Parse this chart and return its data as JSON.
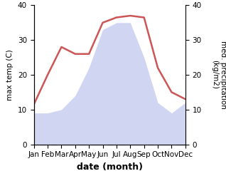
{
  "months": [
    "Jan",
    "Feb",
    "Mar",
    "Apr",
    "May",
    "Jun",
    "Jul",
    "Aug",
    "Sep",
    "Oct",
    "Nov",
    "Dec"
  ],
  "temperature": [
    11.5,
    20.0,
    28.0,
    26.0,
    26.0,
    35.0,
    36.5,
    37.0,
    36.5,
    22.0,
    15.0,
    13.0
  ],
  "precipitation": [
    9,
    9,
    10,
    14,
    22,
    33,
    35,
    35,
    25,
    12,
    9,
    12
  ],
  "temp_color": "#cc5555",
  "precip_color": "#aab4e8",
  "precip_fill_alpha": 0.55,
  "ylim_temp": [
    0,
    40
  ],
  "ylim_precip": [
    0,
    40
  ],
  "xlabel": "date (month)",
  "ylabel_left": "max temp (C)",
  "ylabel_right": "med. precipitation\n(kg/m2)",
  "tick_fontsize": 7.5,
  "label_fontsize": 9,
  "background_color": "#ffffff"
}
